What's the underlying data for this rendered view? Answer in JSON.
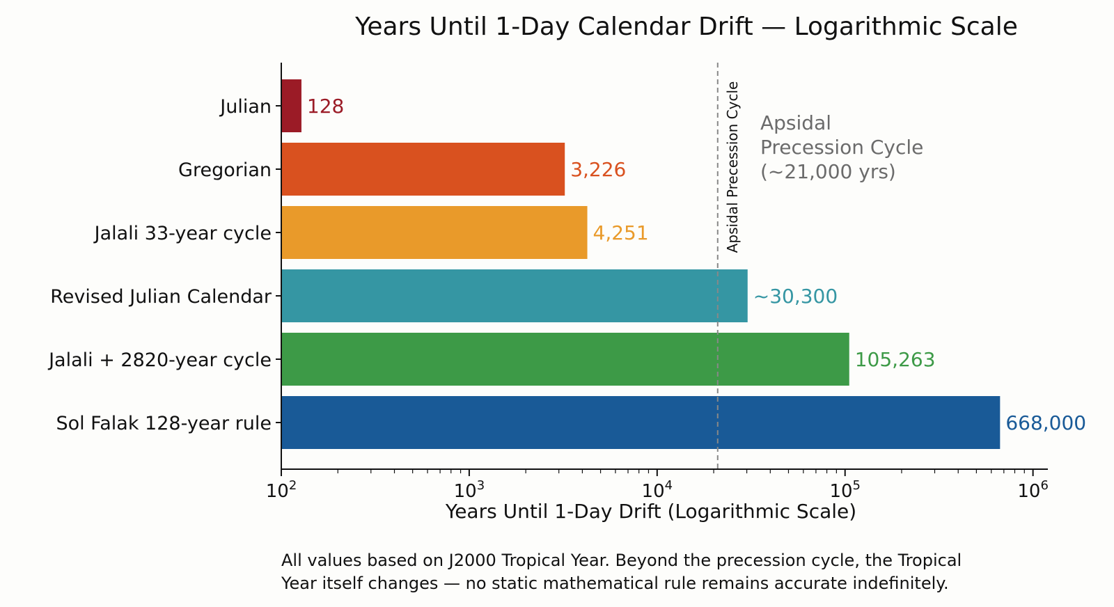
{
  "chart_data": {
    "type": "bar",
    "orientation": "horizontal",
    "title": "Years Until 1-Day Calendar Drift — Logarithmic Scale",
    "xlabel": "Years Until 1-Day Drift (Logarithmic Scale)",
    "ylabel": "",
    "x_scale": "log",
    "xlim": [
      100,
      1200000
    ],
    "x_ticks": [
      {
        "value": 100,
        "base": "10",
        "exp": "2"
      },
      {
        "value": 1000,
        "base": "10",
        "exp": "3"
      },
      {
        "value": 10000,
        "base": "10",
        "exp": "4"
      },
      {
        "value": 100000,
        "base": "10",
        "exp": "5"
      },
      {
        "value": 1000000,
        "base": "10",
        "exp": "6"
      }
    ],
    "grid": false,
    "categories": [
      "Julian",
      "Gregorian",
      "Jalali 33-year cycle",
      "Revised Julian Calendar",
      "Jalali + 2820-year cycle",
      "Sol Falak 128-year rule"
    ],
    "values": [
      128,
      3226,
      4251,
      30300,
      105263,
      668000
    ],
    "value_labels": [
      "128",
      "3,226",
      "4,251",
      "~30,300",
      "105,263",
      "668,000"
    ],
    "colors": [
      "#9b1b26",
      "#d9511f",
      "#e99a2a",
      "#3596a3",
      "#3d9a47",
      "#195a97"
    ],
    "reference_line": {
      "value": 21000,
      "style": "dashed",
      "color": "#888888",
      "label": "Apsidal Precession Cycle",
      "annotation": [
        "Apsidal",
        "Precession Cycle",
        "(~21,000 yrs)"
      ]
    },
    "footnote": [
      "All values based on J2000 Tropical Year. Beyond the precession cycle, the Tropical",
      "Year itself changes — no static mathematical rule remains accurate indefinitely."
    ]
  }
}
